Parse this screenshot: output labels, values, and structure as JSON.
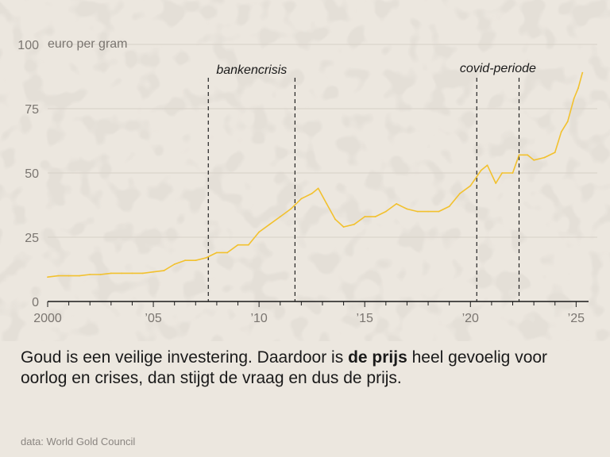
{
  "chart_data": {
    "type": "line",
    "unit_label": "euro per gram",
    "ylim": [
      0,
      100
    ],
    "y_ticks": [
      0,
      25,
      50,
      75,
      100
    ],
    "xlim": [
      2000,
      2025.4
    ],
    "x_ticks": [
      {
        "value": 2000,
        "label": "2000"
      },
      {
        "value": 2005,
        "label": "’05"
      },
      {
        "value": 2010,
        "label": "’10"
      },
      {
        "value": 2015,
        "label": "’15"
      },
      {
        "value": 2020,
        "label": "’20"
      },
      {
        "value": 2025,
        "label": "’25"
      }
    ],
    "grid": "horizontal",
    "line_color": "#f2c12e",
    "x": [
      2000.0,
      2000.5,
      2001.0,
      2001.5,
      2002.0,
      2002.5,
      2003.0,
      2003.5,
      2004.0,
      2004.5,
      2005.0,
      2005.5,
      2006.0,
      2006.5,
      2007.0,
      2007.5,
      2008.0,
      2008.5,
      2009.0,
      2009.5,
      2010.0,
      2010.5,
      2011.0,
      2011.5,
      2012.0,
      2012.5,
      2012.8,
      2013.2,
      2013.6,
      2014.0,
      2014.5,
      2015.0,
      2015.5,
      2016.0,
      2016.5,
      2017.0,
      2017.5,
      2018.0,
      2018.5,
      2019.0,
      2019.5,
      2020.0,
      2020.5,
      2020.8,
      2021.2,
      2021.5,
      2022.0,
      2022.3,
      2022.7,
      2023.0,
      2023.5,
      2024.0,
      2024.3,
      2024.6,
      2024.9,
      2025.1,
      2025.3
    ],
    "values": [
      9.5,
      10,
      10,
      10,
      10.5,
      10.5,
      11,
      11,
      11,
      11,
      11.5,
      12,
      14.5,
      16,
      16,
      17,
      19,
      19,
      22,
      22,
      27,
      30,
      33,
      36,
      40,
      42,
      44,
      38,
      32,
      29,
      30,
      33,
      33,
      35,
      38,
      36,
      35,
      35,
      35,
      37,
      42,
      45,
      51,
      53,
      46,
      50,
      50,
      57,
      57,
      55,
      56,
      58,
      66,
      70,
      79,
      83,
      89
    ],
    "annotations": [
      {
        "label": "bankencrisis",
        "x_start": 2007.6,
        "x_end": 2011.7
      },
      {
        "label": "covid-periode",
        "x_start": 2020.3,
        "x_end": 2022.3
      }
    ]
  },
  "caption": {
    "part1": "Goud is een veilige investering. Daardoor is ",
    "bold": "de prijs",
    "part2": " heel gevoelig voor oorlog en crises, dan stijgt de vraag en dus de prijs."
  },
  "source": "data: World Gold Council"
}
